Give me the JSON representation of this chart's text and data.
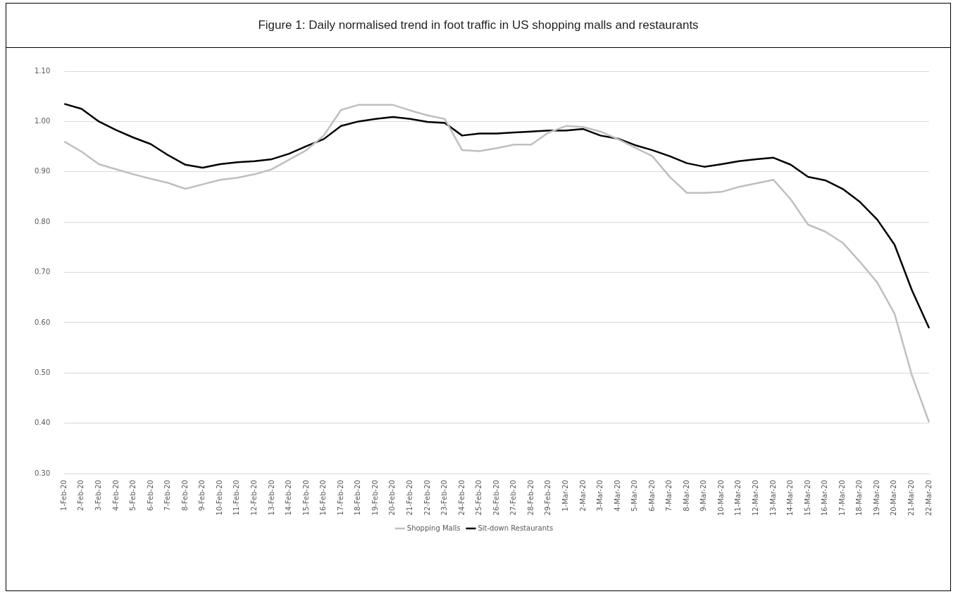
{
  "chart_data": {
    "type": "line",
    "title": "Figure 1: Daily normalised trend in foot traffic in US shopping malls and restaurants",
    "categories": [
      "1-Feb-20",
      "2-Feb-20",
      "3-Feb-20",
      "4-Feb-20",
      "5-Feb-20",
      "6-Feb-20",
      "7-Feb-20",
      "8-Feb-20",
      "9-Feb-20",
      "10-Feb-20",
      "11-Feb-20",
      "12-Feb-20",
      "13-Feb-20",
      "14-Feb-20",
      "15-Feb-20",
      "16-Feb-20",
      "17-Feb-20",
      "18-Feb-20",
      "19-Feb-20",
      "20-Feb-20",
      "21-Feb-20",
      "22-Feb-20",
      "23-Feb-20",
      "24-Feb-20",
      "25-Feb-20",
      "26-Feb-20",
      "27-Feb-20",
      "28-Feb-20",
      "29-Feb-20",
      "1-Mar-20",
      "2-Mar-20",
      "3-Mar-20",
      "4-Mar-20",
      "5-Mar-20",
      "6-Mar-20",
      "7-Mar-20",
      "8-Mar-20",
      "9-Mar-20",
      "10-Mar-20",
      "11-Mar-20",
      "12-Mar-20",
      "13-Mar-20",
      "14-Mar-20",
      "15-Mar-20",
      "16-Mar-20",
      "17-Mar-20",
      "18-Mar-20",
      "19-Mar-20",
      "20-Mar-20",
      "21-Mar-20",
      "22-Mar-20"
    ],
    "series": [
      {
        "name": "Shopping Malls",
        "color": "#bfbfbf",
        "values": [
          0.96,
          0.94,
          0.915,
          0.905,
          0.895,
          0.886,
          0.878,
          0.866,
          0.875,
          0.884,
          0.888,
          0.895,
          0.905,
          0.924,
          0.943,
          0.972,
          1.023,
          1.033,
          1.033,
          1.033,
          1.022,
          1.012,
          1.005,
          0.943,
          0.941,
          0.947,
          0.954,
          0.954,
          0.978,
          0.991,
          0.989,
          0.98,
          0.965,
          0.948,
          0.931,
          0.89,
          0.858,
          0.858,
          0.86,
          0.87,
          0.877,
          0.884,
          0.845,
          0.795,
          0.781,
          0.759,
          0.721,
          0.68,
          0.618,
          0.496,
          0.402
        ]
      },
      {
        "name": "Sit-down Restaurants",
        "color": "#000000",
        "values": [
          1.035,
          1.025,
          1.0,
          0.983,
          0.968,
          0.955,
          0.933,
          0.914,
          0.908,
          0.915,
          0.919,
          0.921,
          0.925,
          0.936,
          0.951,
          0.965,
          0.991,
          1.0,
          1.005,
          1.009,
          1.005,
          0.999,
          0.997,
          0.972,
          0.976,
          0.976,
          0.978,
          0.98,
          0.982,
          0.982,
          0.985,
          0.972,
          0.966,
          0.953,
          0.943,
          0.931,
          0.917,
          0.91,
          0.915,
          0.921,
          0.925,
          0.928,
          0.914,
          0.89,
          0.883,
          0.866,
          0.84,
          0.805,
          0.755,
          0.665,
          0.589
        ]
      }
    ],
    "ylim": [
      0.3,
      1.1
    ],
    "yticks": [
      {
        "value": 0.3,
        "label": "0.30"
      },
      {
        "value": 0.4,
        "label": "0.40"
      },
      {
        "value": 0.5,
        "label": "0.50"
      },
      {
        "value": 0.6,
        "label": "0.60"
      },
      {
        "value": 0.7,
        "label": "0.70"
      },
      {
        "value": 0.8,
        "label": "0.80"
      },
      {
        "value": 0.9,
        "label": "0.90"
      },
      {
        "value": 1.0,
        "label": "1.00"
      },
      {
        "value": 1.1,
        "label": "1.10"
      }
    ],
    "grid": "y",
    "legend": "bottom",
    "marker": "none",
    "line_style": "solid"
  }
}
